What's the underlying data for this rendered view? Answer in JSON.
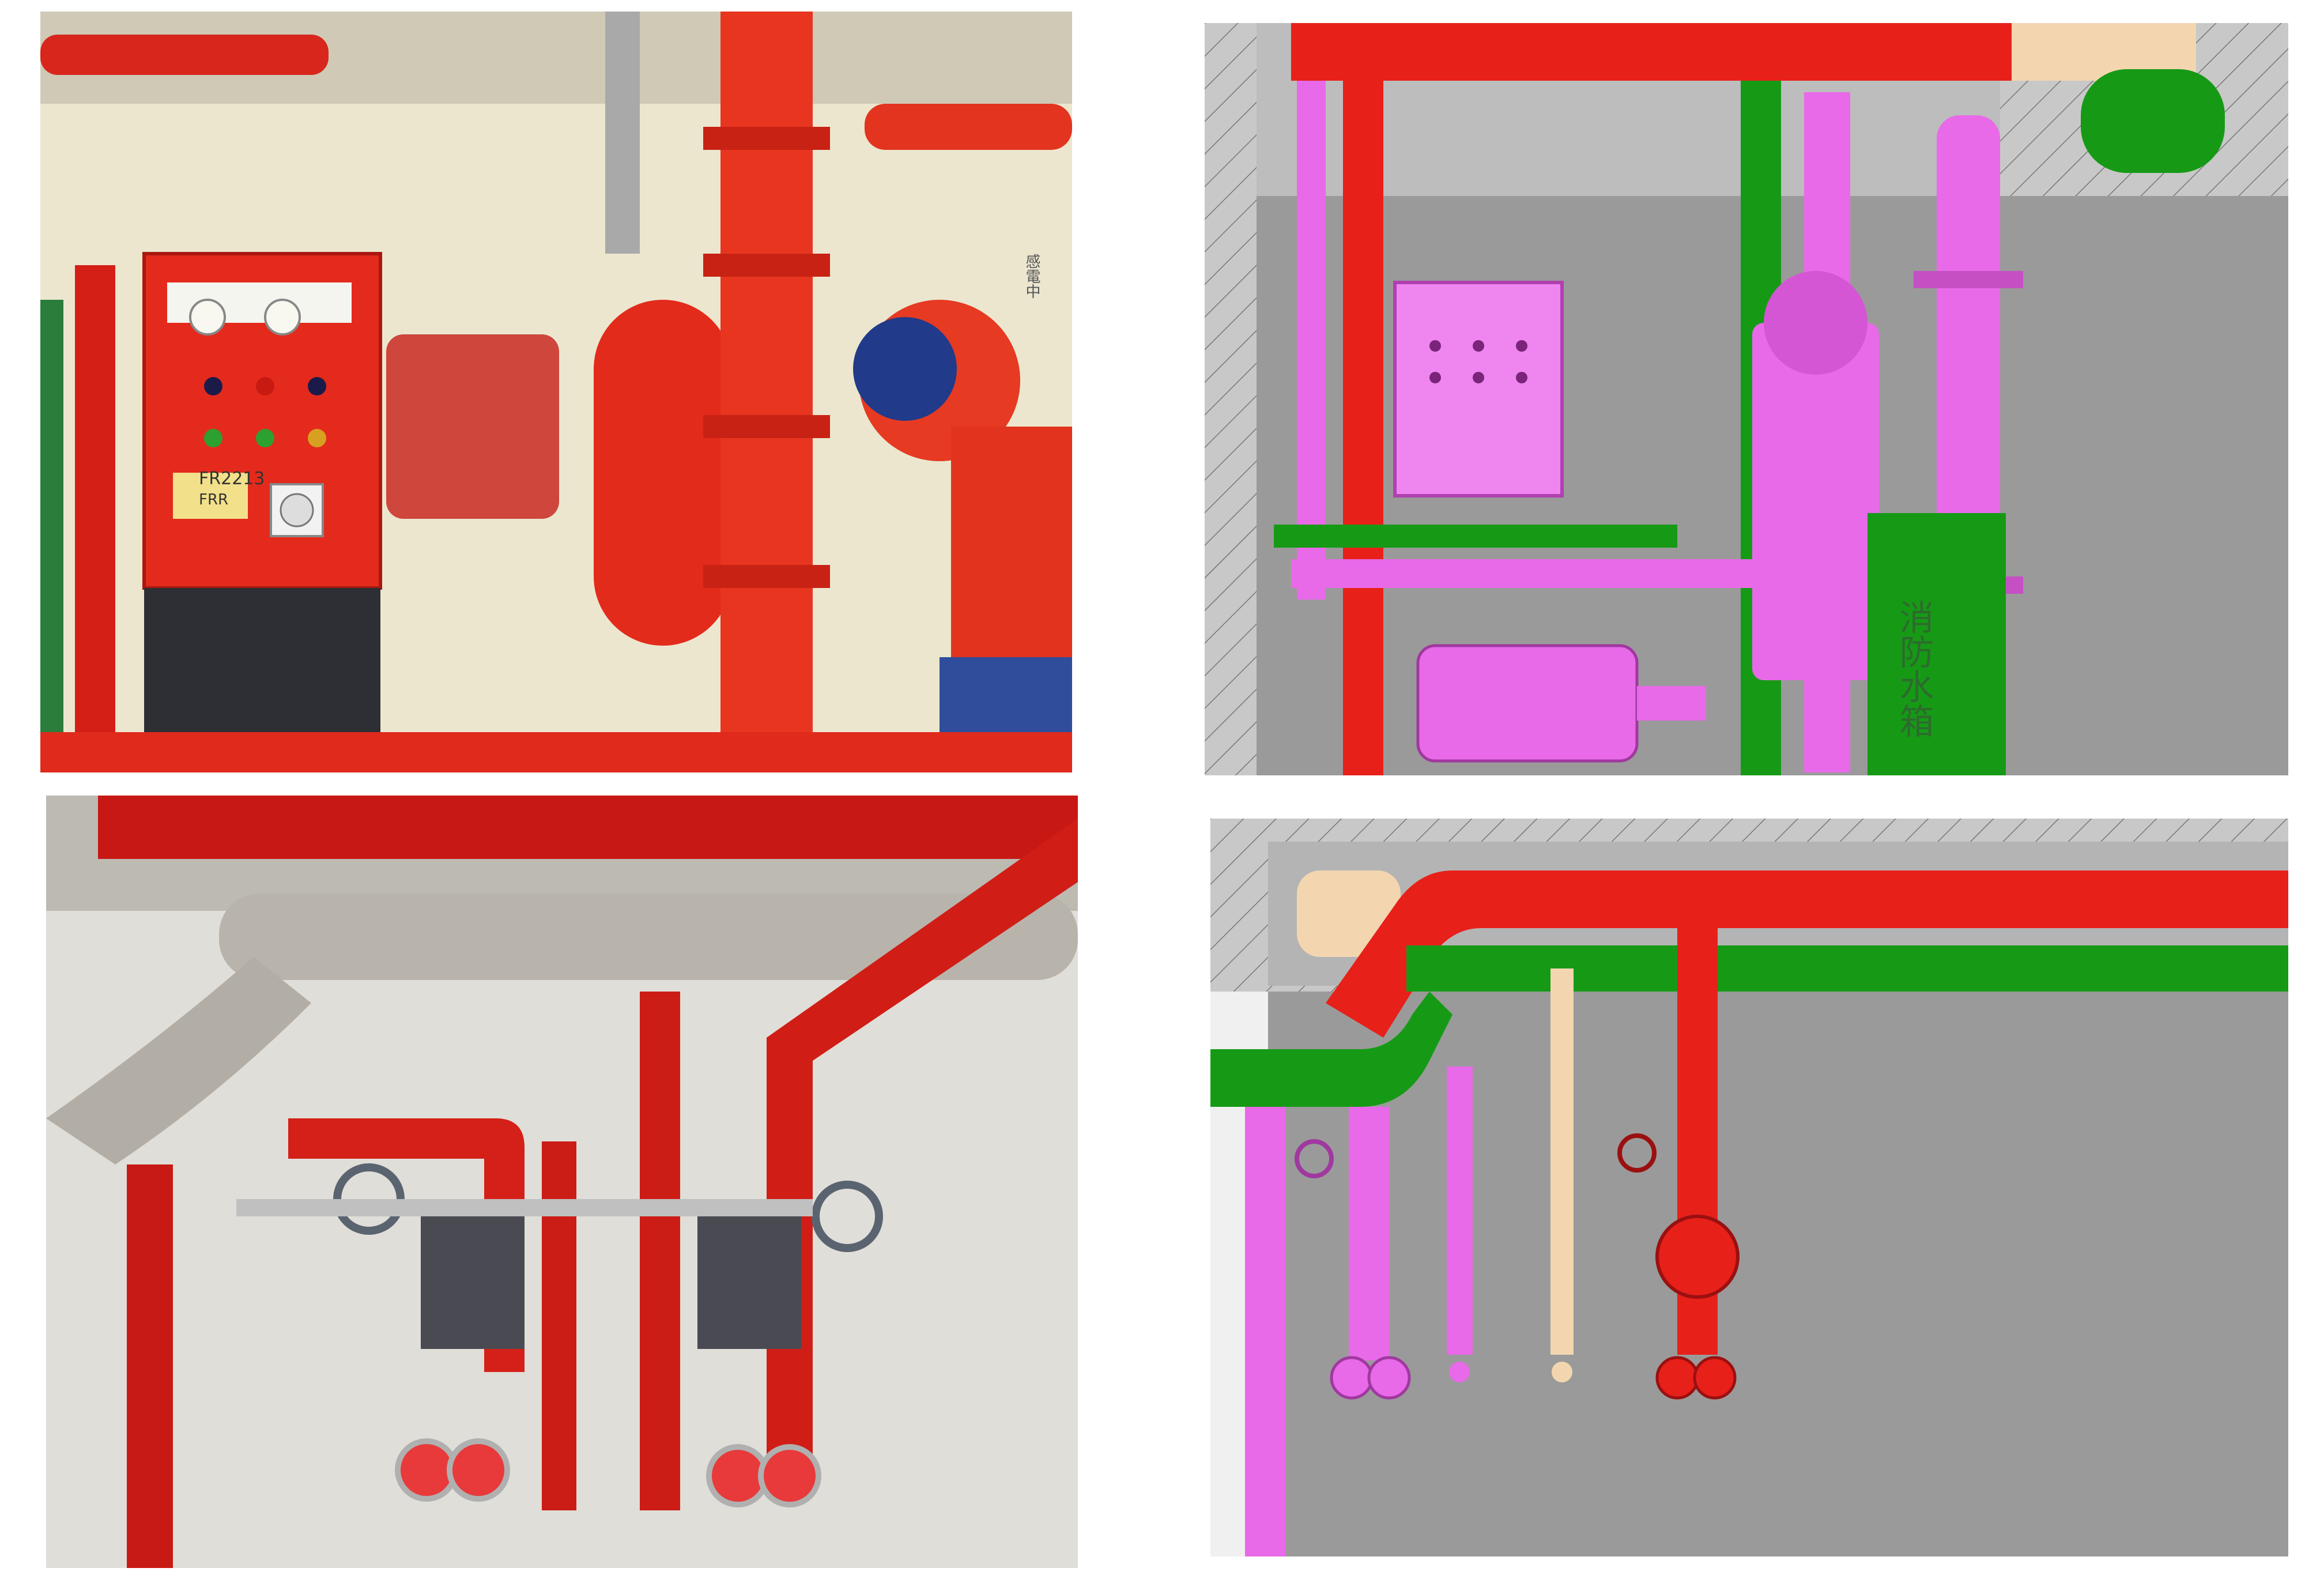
{
  "panels": [
    {
      "kind": "photo",
      "subject": "fire-pump-room-photo"
    },
    {
      "kind": "bim-model",
      "subject": "fire-pump-room-3d-model"
    },
    {
      "kind": "photo",
      "subject": "riser-valves-photo"
    },
    {
      "kind": "bim-model",
      "subject": "riser-valves-3d-model"
    }
  ],
  "photo_labels": {
    "control_tag": "FR2213",
    "control_tag_sub": "FRR",
    "wall_sign": "感電中"
  },
  "model_labels": {
    "tank_sign": "消防水箱"
  },
  "colors": {
    "fire_red": "#e8201a",
    "pipe_magenta": "#e86ae8",
    "pipe_green": "#169a16",
    "pipe_beige": "#f3d6b0",
    "model_bg": "#9a9a9a",
    "wall_hatch": "#c8c8c8",
    "stainless": "#b8b4ac"
  }
}
